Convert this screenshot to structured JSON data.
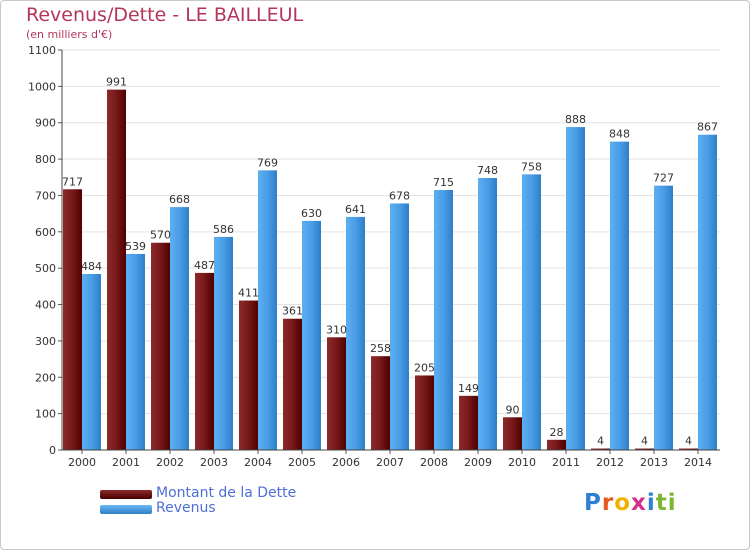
{
  "header": {
    "title": "Revenus/Dette - LE BAILLEUL",
    "subtitle": "(en milliers d'€)"
  },
  "legend": {
    "items": [
      {
        "label": "Montant de la Dette",
        "color": "#6b0d0d"
      },
      {
        "label": "Revenus",
        "color": "#4a9de6"
      }
    ]
  },
  "logo": {
    "text": "Proxiti",
    "letters": [
      "P",
      "r",
      "o",
      "x",
      "i",
      "t",
      "i"
    ],
    "colors": [
      "#2e7fd6",
      "#e65a1e",
      "#f0b400",
      "#d62e8a",
      "#2e7fd6",
      "#7cb82f",
      "#7cb82f"
    ]
  },
  "chart_data": {
    "type": "bar",
    "title": "Revenus/Dette - LE BAILLEUL",
    "subtitle": "(en milliers d'€)",
    "categories": [
      "2000",
      "2001",
      "2002",
      "2003",
      "2004",
      "2005",
      "2006",
      "2007",
      "2008",
      "2009",
      "2010",
      "2011",
      "2012",
      "2013",
      "2014"
    ],
    "series": [
      {
        "name": "Montant de la Dette",
        "color": "#6b0d0d",
        "values": [
          717,
          991,
          570,
          487,
          411,
          361,
          310,
          258,
          205,
          149,
          90,
          28,
          4,
          4,
          4
        ]
      },
      {
        "name": "Revenus",
        "color": "#4a9de6",
        "values": [
          484,
          539,
          668,
          586,
          769,
          630,
          641,
          678,
          715,
          748,
          758,
          888,
          848,
          727,
          867
        ]
      }
    ],
    "yticks": [
      0,
      100,
      200,
      300,
      400,
      500,
      600,
      700,
      800,
      900,
      1000,
      1100
    ],
    "ylim": [
      0,
      1100
    ],
    "grid": true,
    "legend_position": "bottom-left"
  }
}
